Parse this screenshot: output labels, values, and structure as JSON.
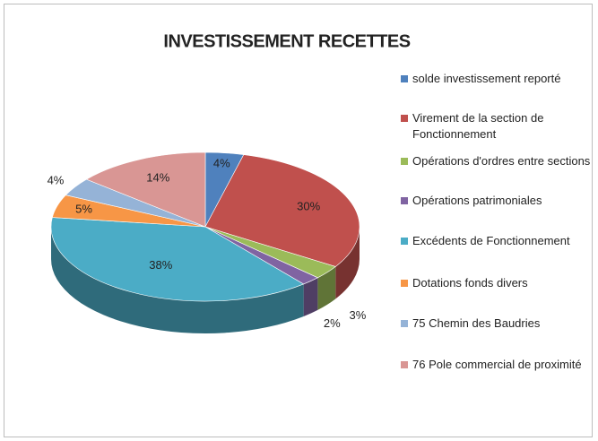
{
  "chart_data": {
    "type": "pie3d",
    "title": "INVESTISSEMENT RECETTES",
    "categories": [
      "solde investissement reporté",
      "Virement de la section de Fonctionnement",
      "Opérations d'ordres entre sections",
      "Opérations patrimoniales",
      "Excédents de Fonctionnement",
      "Dotations fonds divers",
      "75 Chemin des Baudries",
      "76 Pole commercial de proximité"
    ],
    "values": [
      4,
      30,
      3,
      2,
      38,
      5,
      4,
      14
    ],
    "value_labels": [
      "4%",
      "30%",
      "3%",
      "2%",
      "38%",
      "5%",
      "4%",
      "14%"
    ],
    "colors": [
      "#4f81bd",
      "#c0504d",
      "#9bbb59",
      "#8064a2",
      "#4bacc6",
      "#f79646",
      "#95b3d7",
      "#d99694"
    ],
    "legend": "right"
  }
}
